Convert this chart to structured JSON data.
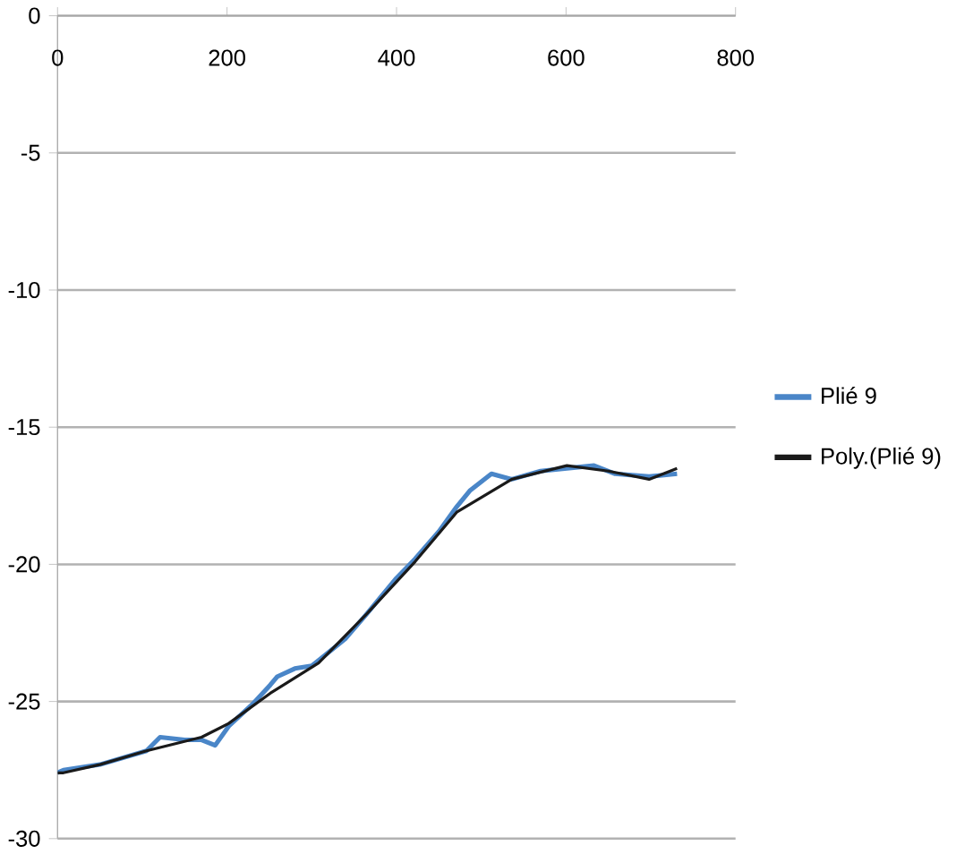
{
  "chart_data": {
    "type": "line",
    "xlim": [
      0,
      800
    ],
    "ylim": [
      -30,
      0
    ],
    "xticks": [
      0,
      200,
      400,
      600,
      800
    ],
    "yticks": [
      -30,
      -25,
      -20,
      -15,
      -10,
      -5,
      0
    ],
    "grid": "y",
    "legend": "right",
    "marker": "none",
    "line_style": "solid",
    "series": [
      {
        "name": "Plié 9",
        "color": "#4a86c8",
        "x": [
          0,
          7,
          50,
          105,
          121,
          150,
          170,
          186,
          202,
          230,
          251,
          259,
          280,
          300,
          308,
          340,
          365,
          400,
          422,
          450,
          471,
          487,
          512,
          536,
          570,
          601,
          633,
          658,
          698,
          731
        ],
        "values": [
          -27.6,
          -27.5,
          -27.3,
          -26.8,
          -26.3,
          -26.4,
          -26.4,
          -26.6,
          -25.9,
          -25.1,
          -24.4,
          -24.1,
          -23.8,
          -23.7,
          -23.5,
          -22.7,
          -21.8,
          -20.5,
          -19.8,
          -18.8,
          -17.9,
          -17.3,
          -16.7,
          -16.9,
          -16.6,
          -16.5,
          -16.4,
          -16.7,
          -16.8,
          -16.7
        ]
      },
      {
        "name": "Poly.(Plié 9)",
        "color": "#1a1a1a",
        "x": [
          0,
          7,
          50,
          105,
          170,
          202,
          251,
          308,
          365,
          422,
          471,
          536,
          601,
          650,
          698,
          731
        ],
        "values": [
          -27.6,
          -27.6,
          -27.3,
          -26.8,
          -26.3,
          -25.8,
          -24.7,
          -23.6,
          -21.8,
          -19.9,
          -18.1,
          -16.9,
          -16.4,
          -16.6,
          -16.9,
          -16.5
        ]
      }
    ]
  }
}
